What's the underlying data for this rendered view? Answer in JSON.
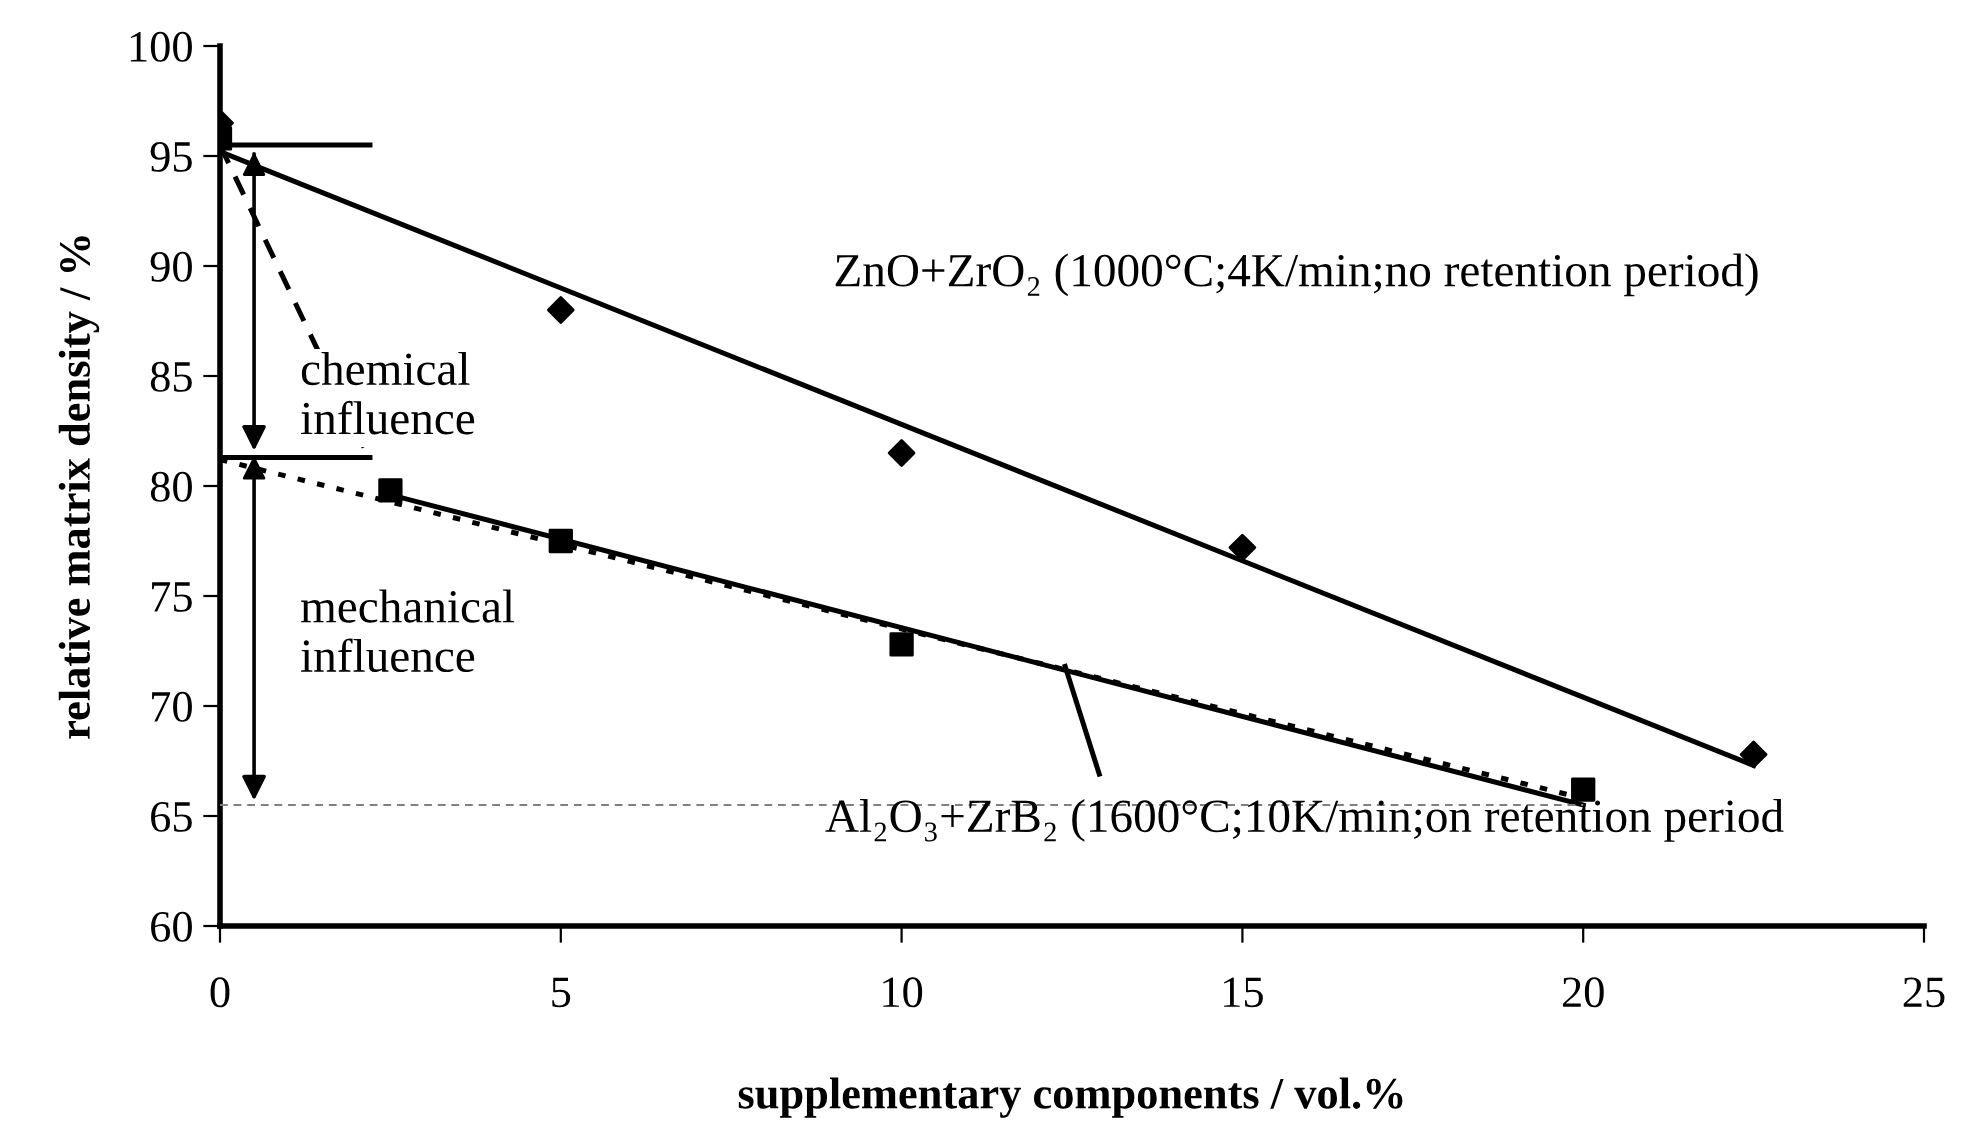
{
  "chart_data": {
    "type": "scatter",
    "xlabel": "supplementary components / vol.%",
    "ylabel": "relative matrix density / %",
    "xlim": [
      0,
      25
    ],
    "ylim": [
      60,
      100
    ],
    "xticks": [
      0,
      5,
      10,
      15,
      20,
      25
    ],
    "yticks": [
      60,
      65,
      70,
      75,
      80,
      85,
      90,
      95,
      100
    ],
    "grid": false,
    "legend": false,
    "series": [
      {
        "marker": "diamond",
        "color": "#000000",
        "x": [
          0,
          5,
          10,
          15,
          22.5
        ],
        "values": [
          96.5,
          88,
          81.5,
          77.2,
          67.8
        ]
      },
      {
        "marker": "square",
        "color": "#000000",
        "x": [
          0,
          2.5,
          5,
          10,
          20
        ],
        "values": [
          95.8,
          79.8,
          77.5,
          72.8,
          66.2
        ]
      },
      {
        "marker": "triangle",
        "color": "#000000",
        "x": [
          0.5,
          0.5
        ],
        "values": [
          94.6,
          80.8
        ]
      },
      {
        "type": "line",
        "line_style": "solid",
        "color": "#000000",
        "x": [
          0,
          22.5
        ],
        "values": [
          95.2,
          67.3
        ]
      },
      {
        "type": "line",
        "line_style": "solid",
        "color": "#000000",
        "x": [
          2.5,
          20
        ],
        "values": [
          79.6,
          65.5
        ]
      },
      {
        "type": "line",
        "line_style": "dotted",
        "color": "#000000",
        "x": [
          0,
          20
        ],
        "values": [
          81.2,
          65.8
        ]
      },
      {
        "type": "line",
        "line_style": "dashed",
        "color": "#000000",
        "x": [
          0,
          2.2
        ],
        "values": [
          95.5,
          81.2
        ]
      },
      {
        "type": "line",
        "line_style": "solid",
        "color": "#000000",
        "x": [
          0,
          2.2
        ],
        "values": [
          95.5,
          95.5
        ]
      },
      {
        "type": "line",
        "line_style": "solid",
        "color": "#000000",
        "x": [
          0,
          2.2
        ],
        "values": [
          81.3,
          81.3
        ]
      },
      {
        "type": "line",
        "line_style": "dashed",
        "color": "#808080",
        "x": [
          0,
          20
        ],
        "values": [
          65.5,
          65.5
        ]
      },
      {
        "type": "line",
        "line_style": "solid",
        "color": "#000000",
        "x": [
          12.4,
          12.9
        ],
        "values": [
          71.8,
          66.9
        ]
      }
    ],
    "annotations": [
      {
        "text": "chemical\ninfluence",
        "x": 0.5,
        "y": 81.6
      },
      {
        "text": "mechanical\ninfluence",
        "x": 0.5,
        "y": 65.7
      },
      "ZnO+ZrO₂ (1000°C;4K/min;no retention period)",
      "Al₂O₃+ZrB₂ (1600°C;10K/min;on retention period"
    ]
  }
}
